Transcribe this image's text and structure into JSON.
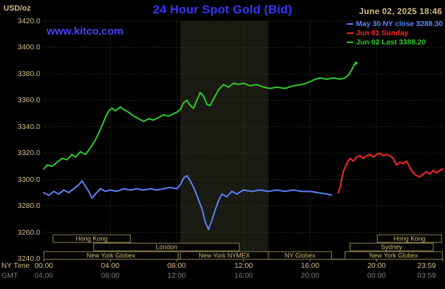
{
  "header": {
    "units": "USD/oz",
    "title": "24 Hour Spot Gold (Bid)",
    "datetime": "June 02, 2025 18:46",
    "website": "www.kitco.com"
  },
  "legend": [
    {
      "id": "may30",
      "label": "May 30 NY close 3288.30",
      "color": "#5b84ff"
    },
    {
      "id": "jun01",
      "label": "Jun 01 Sunday",
      "color": "#ff2828"
    },
    {
      "id": "jun02",
      "label": "Jun 02 Last 3388.20",
      "color": "#2ecc2e"
    }
  ],
  "axes": {
    "ny_label": "NY Time",
    "gmt_label": "GMT",
    "y_ticks": [
      {
        "label": "3420.0",
        "value": 3420
      },
      {
        "label": "3400.0",
        "value": 3400
      },
      {
        "label": "3380.0",
        "value": 3380
      },
      {
        "label": "3360.0",
        "value": 3360
      },
      {
        "label": "3340.0",
        "value": 3340
      },
      {
        "label": "3320.0",
        "value": 3320
      },
      {
        "label": "3300.0",
        "value": 3300
      },
      {
        "label": "3280.0",
        "value": 3280
      },
      {
        "label": "3260.0",
        "value": 3260
      },
      {
        "label": "3240.0",
        "value": 3240
      }
    ],
    "x_ticks": [
      {
        "ny": "00:00",
        "gmt": "04:00",
        "hour": 0
      },
      {
        "ny": "04:00",
        "gmt": "08:00",
        "hour": 4
      },
      {
        "ny": "08:00",
        "gmt": "12:00",
        "hour": 8
      },
      {
        "ny": "12:00",
        "gmt": "16:00",
        "hour": 12
      },
      {
        "ny": "16:00",
        "gmt": "20:00",
        "hour": 16
      },
      {
        "ny": "20:00",
        "gmt": "00:00",
        "hour": 20
      },
      {
        "ny": "23:59",
        "gmt": "03:59",
        "hour": 23.983
      }
    ]
  },
  "sessions": [
    {
      "row": 1,
      "label": "Hong Kong",
      "start": 0.55,
      "end": 5.2
    },
    {
      "row": 1,
      "label": "Hong Kong",
      "start": 20.05,
      "end": 23.9
    },
    {
      "row": 2,
      "label": "London",
      "start": 3.0,
      "end": 11.75
    },
    {
      "row": 2,
      "label": "Sydney",
      "start": 18.4,
      "end": 23.4
    },
    {
      "row": 3,
      "label": "New York Globex",
      "start": 0.0,
      "end": 8.07
    },
    {
      "row": 3,
      "label": "New York NYMEX",
      "start": 8.2,
      "end": 13.5
    },
    {
      "row": 3,
      "label": "NY Globex",
      "start": 13.5,
      "end": 17.3
    },
    {
      "row": 3,
      "label": "New York Globex",
      "start": 18.1,
      "end": 23.95
    }
  ],
  "colors": {
    "background": "#000000",
    "title": "#3535ff",
    "link": "#4444ff",
    "tan": "#d6bd85",
    "gmt_gray": "#7d7d7d",
    "grid": "#2e462e",
    "band": "#1a1a12",
    "axis": "#9a9a85",
    "session_border": "#8f8050",
    "session_text": "#cdb571"
  },
  "chart_data": {
    "type": "line",
    "title": "24 Hour Spot Gold (Bid)",
    "xlabel": "NY Time (hours)",
    "ylabel": "USD/oz",
    "xlim": [
      0,
      23.983
    ],
    "ylim": [
      3240,
      3420
    ],
    "grid": true,
    "legend_position": "top-right",
    "highlight_band": {
      "start": 8.2,
      "end": 13.5
    },
    "series": [
      {
        "id": "may30",
        "name": "May 30 NY close 3288.30",
        "color": "#5b84ff",
        "close": 3288.3,
        "points": [
          [
            0,
            3290
          ],
          [
            0.3,
            3288
          ],
          [
            0.6,
            3291
          ],
          [
            0.9,
            3289
          ],
          [
            1.2,
            3292
          ],
          [
            1.5,
            3290
          ],
          [
            1.8,
            3293
          ],
          [
            2.1,
            3296
          ],
          [
            2.3,
            3299
          ],
          [
            2.5,
            3295
          ],
          [
            2.7,
            3291
          ],
          [
            2.9,
            3286
          ],
          [
            3.1,
            3289
          ],
          [
            3.4,
            3293
          ],
          [
            3.7,
            3291
          ],
          [
            4,
            3292
          ],
          [
            4.4,
            3291
          ],
          [
            4.8,
            3293
          ],
          [
            5.2,
            3292
          ],
          [
            5.6,
            3293
          ],
          [
            6,
            3292
          ],
          [
            6.4,
            3293
          ],
          [
            6.8,
            3292
          ],
          [
            7.2,
            3293
          ],
          [
            7.6,
            3294
          ],
          [
            8,
            3293
          ],
          [
            8.2,
            3296
          ],
          [
            8.4,
            3301
          ],
          [
            8.6,
            3303
          ],
          [
            8.8,
            3299
          ],
          [
            9,
            3294
          ],
          [
            9.2,
            3288
          ],
          [
            9.5,
            3278
          ],
          [
            9.7,
            3268
          ],
          [
            9.9,
            3262
          ],
          [
            10.1,
            3269
          ],
          [
            10.3,
            3277
          ],
          [
            10.5,
            3284
          ],
          [
            10.7,
            3289
          ],
          [
            11,
            3287
          ],
          [
            11.3,
            3291
          ],
          [
            11.6,
            3289
          ],
          [
            12,
            3292
          ],
          [
            12.5,
            3291
          ],
          [
            13,
            3292
          ],
          [
            13.5,
            3291
          ],
          [
            14,
            3292
          ],
          [
            14.5,
            3291
          ],
          [
            15,
            3292
          ],
          [
            15.5,
            3291
          ],
          [
            16,
            3291
          ],
          [
            16.5,
            3290
          ],
          [
            17,
            3289
          ],
          [
            17.3,
            3288.3
          ]
        ]
      },
      {
        "id": "jun01",
        "name": "Jun 01 Sunday",
        "color": "#ff2828",
        "points": [
          [
            17.7,
            3290
          ],
          [
            17.8,
            3294
          ],
          [
            17.9,
            3300
          ],
          [
            18,
            3306
          ],
          [
            18.2,
            3312
          ],
          [
            18.4,
            3316
          ],
          [
            18.6,
            3314
          ],
          [
            18.8,
            3317
          ],
          [
            19,
            3318
          ],
          [
            19.2,
            3316
          ],
          [
            19.4,
            3318
          ],
          [
            19.6,
            3319
          ],
          [
            19.8,
            3317
          ],
          [
            20,
            3319
          ],
          [
            20.2,
            3320
          ],
          [
            20.4,
            3318
          ],
          [
            20.6,
            3319
          ],
          [
            20.8,
            3318
          ],
          [
            21,
            3316
          ],
          [
            21.2,
            3311
          ],
          [
            21.4,
            3313
          ],
          [
            21.6,
            3312
          ],
          [
            21.8,
            3314
          ],
          [
            22,
            3309
          ],
          [
            22.2,
            3305
          ],
          [
            22.4,
            3303
          ],
          [
            22.6,
            3302
          ],
          [
            22.8,
            3304
          ],
          [
            23,
            3306
          ],
          [
            23.2,
            3304
          ],
          [
            23.4,
            3307
          ],
          [
            23.6,
            3305
          ],
          [
            23.8,
            3307
          ],
          [
            23.98,
            3308
          ]
        ]
      },
      {
        "id": "jun02",
        "name": "Jun 02 Last 3388.20",
        "color": "#2ecc2e",
        "last": 3388.2,
        "points": [
          [
            0,
            3308
          ],
          [
            0.2,
            3311
          ],
          [
            0.5,
            3310
          ],
          [
            0.8,
            3313
          ],
          [
            1.1,
            3316
          ],
          [
            1.4,
            3315
          ],
          [
            1.7,
            3319
          ],
          [
            1.9,
            3317
          ],
          [
            2.2,
            3321
          ],
          [
            2.5,
            3319
          ],
          [
            2.8,
            3324
          ],
          [
            3.1,
            3330
          ],
          [
            3.4,
            3338
          ],
          [
            3.7,
            3347
          ],
          [
            3.9,
            3352
          ],
          [
            4.1,
            3354
          ],
          [
            4.3,
            3352
          ],
          [
            4.6,
            3355
          ],
          [
            4.8,
            3353
          ],
          [
            5.1,
            3351
          ],
          [
            5.4,
            3348
          ],
          [
            5.7,
            3346
          ],
          [
            6,
            3344
          ],
          [
            6.3,
            3346
          ],
          [
            6.6,
            3345
          ],
          [
            6.9,
            3347
          ],
          [
            7.2,
            3349
          ],
          [
            7.5,
            3348
          ],
          [
            7.8,
            3350
          ],
          [
            8,
            3351
          ],
          [
            8.2,
            3353
          ],
          [
            8.4,
            3358
          ],
          [
            8.6,
            3360
          ],
          [
            8.8,
            3356
          ],
          [
            9,
            3354
          ],
          [
            9.2,
            3360
          ],
          [
            9.4,
            3366
          ],
          [
            9.6,
            3363
          ],
          [
            9.8,
            3357
          ],
          [
            10,
            3356
          ],
          [
            10.2,
            3361
          ],
          [
            10.5,
            3368
          ],
          [
            10.8,
            3372
          ],
          [
            11.1,
            3370
          ],
          [
            11.4,
            3373
          ],
          [
            11.7,
            3372
          ],
          [
            12,
            3373
          ],
          [
            12.4,
            3371
          ],
          [
            12.8,
            3372
          ],
          [
            13.2,
            3370
          ],
          [
            13.6,
            3369
          ],
          [
            14,
            3370
          ],
          [
            14.5,
            3369
          ],
          [
            15,
            3371
          ],
          [
            15.5,
            3372
          ],
          [
            16,
            3374
          ],
          [
            16.3,
            3376
          ],
          [
            16.6,
            3377
          ],
          [
            17,
            3376
          ],
          [
            17.4,
            3377
          ],
          [
            17.8,
            3376
          ],
          [
            18.1,
            3377
          ],
          [
            18.3,
            3379
          ],
          [
            18.5,
            3383
          ],
          [
            18.65,
            3387
          ],
          [
            18.77,
            3388.2
          ]
        ]
      }
    ]
  }
}
